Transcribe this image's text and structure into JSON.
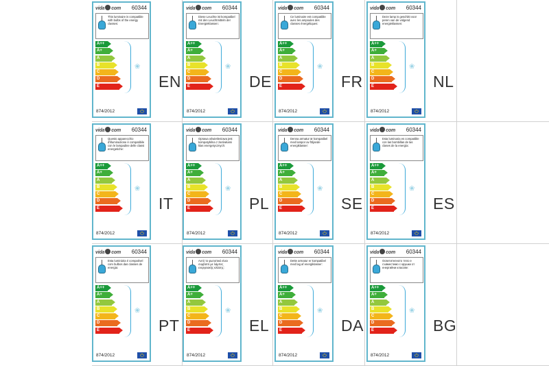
{
  "brand": "vida",
  "brand_suffix": "com",
  "product_code": "60344",
  "regulation": "874/2012",
  "energy_classes": [
    {
      "label": "A++",
      "color": "#1a9a3a"
    },
    {
      "label": "A+",
      "color": "#3fae3a"
    },
    {
      "label": "A",
      "color": "#93c83e"
    },
    {
      "label": "B",
      "color": "#e8e22a"
    },
    {
      "label": "C",
      "color": "#f3b51b"
    },
    {
      "label": "D",
      "color": "#ea6b1f"
    },
    {
      "label": "E",
      "color": "#e2231a"
    }
  ],
  "labels": [
    {
      "lang": "EN",
      "text": "This luminaire is compatible with bulbs of the energy classes:"
    },
    {
      "lang": "DE",
      "text": "Diese Leuchte ist kompatibel mit den Leuchtmitteln der Energieklassen:"
    },
    {
      "lang": "FR",
      "text": "Ce luminaire est compatible avec les ampoules des classes énergétiques:"
    },
    {
      "lang": "NL",
      "text": "Deze lamp is geschikt voor peren van de volgend energieklassen:"
    },
    {
      "lang": "IT",
      "text": "Questo apparecchio d'illuminazione è compatibile con le lampadine delle classi energetiche:"
    },
    {
      "lang": "PL",
      "text": "Oprawa oświetleniowa jest kompatybilna z żarówkami klas energetycznych:"
    },
    {
      "lang": "SE",
      "text": "Denna armatur är kompatibel med lampor av följande energiklasser:"
    },
    {
      "lang": "ES",
      "text": "Esta luminaria es compatible con las bombillas de las clases de la energía:"
    },
    {
      "lang": "PT",
      "text": "Esta luminária é compatível com bulbos das classes de energia:"
    },
    {
      "lang": "EL",
      "text": "Αυτό το φωτιστικό είναι συμβατό με λάμπες ενεργειακής κλάσης:"
    },
    {
      "lang": "DA",
      "text": "Dette armatur er kompatibel med lag af energiklasser:"
    },
    {
      "lang": "BG",
      "text": "Осветителното тяло е съвместимо с крушки от енергийни класове:"
    }
  ]
}
